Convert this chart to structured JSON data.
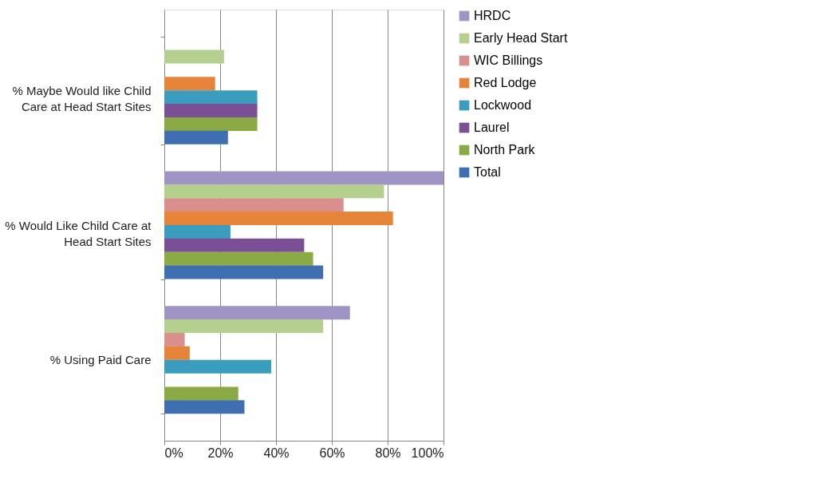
{
  "chart_data": {
    "type": "bar",
    "orientation": "horizontal",
    "categories": [
      "% Maybe Would like Child Care at Head Start Sites",
      "% Would Like Child Care at Head Start Sites",
      "% Using Paid Care"
    ],
    "series": [
      {
        "name": "HRDC",
        "color": "#a094c4",
        "values": [
          0,
          100,
          66.5
        ]
      },
      {
        "name": "Early Head Start",
        "color": "#b5cf8e",
        "values": [
          21.4,
          78.7,
          56.9
        ]
      },
      {
        "name": "WIC Billings",
        "color": "#d9908d",
        "values": [
          0,
          64.2,
          7.3
        ]
      },
      {
        "name": "Red Lodge",
        "color": "#e6843a",
        "values": [
          18.2,
          81.9,
          9.1
        ]
      },
      {
        "name": "Lockwood",
        "color": "#3a9dbd",
        "values": [
          33.3,
          23.7,
          38.3
        ]
      },
      {
        "name": "Laurel",
        "color": "#7a4f93",
        "values": [
          33.3,
          50.1,
          0
        ]
      },
      {
        "name": "North Park",
        "color": "#8aaa45",
        "values": [
          33.3,
          53.3,
          26.5
        ]
      },
      {
        "name": "Total",
        "color": "#3f6fb0",
        "values": [
          22.8,
          56.9,
          28.7
        ]
      }
    ],
    "xlim": [
      0,
      100
    ],
    "xticks": [
      {
        "value": 0,
        "label": "0%"
      },
      {
        "value": 20,
        "label": "20%"
      },
      {
        "value": 40,
        "label": "40%"
      },
      {
        "value": 60,
        "label": "60%"
      },
      {
        "value": 80,
        "label": "80%"
      },
      {
        "value": 100,
        "label": "100%"
      }
    ],
    "grid": "x",
    "legend": "right"
  }
}
